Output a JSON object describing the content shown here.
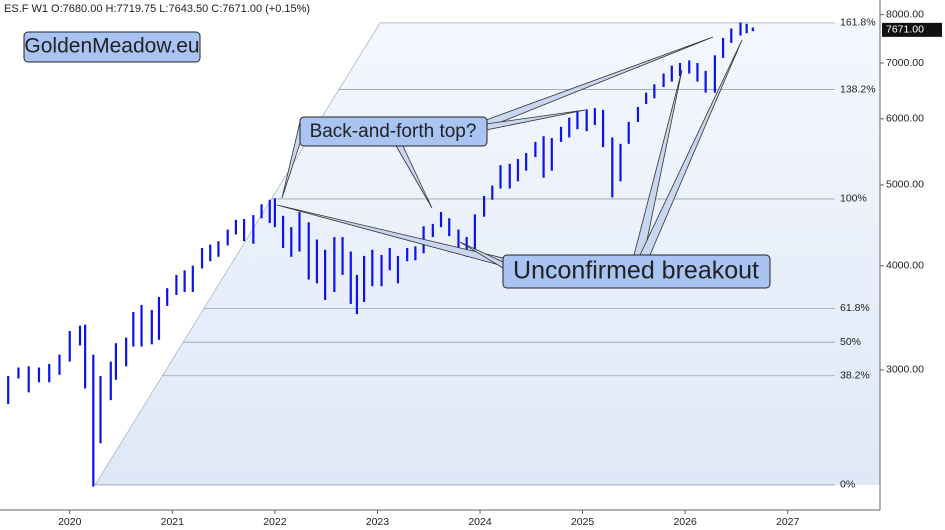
{
  "chart_data": {
    "type": "ohlc_range",
    "header": "ES.F  W1  O:7680.00  H:7719.75  L:7643.50  C:7671.00  (+0.15%)",
    "watermark": "GoldenMeadow.eu",
    "annotations": [
      "Back-and-forth top?",
      "Unconfirmed breakout"
    ],
    "color": "#0a14e6",
    "log_scale": true,
    "x": [
      2019.4,
      2019.5,
      2019.6,
      2019.7,
      2019.8,
      2019.9,
      2020.0,
      2020.1,
      2020.15,
      2020.23,
      2020.3,
      2020.4,
      2020.45,
      2020.55,
      2020.62,
      2020.7,
      2020.8,
      2020.87,
      2020.95,
      2021.04,
      2021.12,
      2021.2,
      2021.29,
      2021.37,
      2021.45,
      2021.54,
      2021.62,
      2021.7,
      2021.79,
      2021.87,
      2021.95,
      2022.0,
      2022.08,
      2022.16,
      2022.24,
      2022.33,
      2022.41,
      2022.49,
      2022.58,
      2022.66,
      2022.74,
      2022.8,
      2022.87,
      2022.95,
      2023.04,
      2023.12,
      2023.2,
      2023.29,
      2023.37,
      2023.45,
      2023.54,
      2023.62,
      2023.7,
      2023.79,
      2023.87,
      2023.95,
      2024.04,
      2024.12,
      2024.2,
      2024.29,
      2024.37,
      2024.45,
      2024.54,
      2024.62,
      2024.7,
      2024.79,
      2024.87,
      2024.95,
      2025.04,
      2025.12,
      2025.2,
      2025.29,
      2025.37,
      2025.45,
      2025.54,
      2025.62,
      2025.7,
      2025.79,
      2025.87,
      2025.95,
      2026.04,
      2026.12,
      2026.2,
      2026.29,
      2026.37,
      2026.45,
      2026.54,
      2026.6,
      2026.66
    ],
    "high": [
      2950,
      3020,
      3030,
      3020,
      3050,
      3130,
      3340,
      3390,
      3400,
      3130,
      2950,
      3070,
      3230,
      3280,
      3520,
      3590,
      3540,
      3670,
      3760,
      3900,
      3950,
      4000,
      4200,
      4240,
      4280,
      4420,
      4540,
      4550,
      4600,
      4740,
      4800,
      4818,
      4590,
      4450,
      4640,
      4510,
      4300,
      4180,
      4330,
      4330,
      4160,
      3900,
      4110,
      4180,
      4120,
      4200,
      4110,
      4200,
      4220,
      4460,
      4490,
      4640,
      4560,
      4420,
      4330,
      4610,
      4850,
      4990,
      5280,
      5300,
      5370,
      5460,
      5630,
      5720,
      5690,
      5870,
      6020,
      6130,
      6160,
      6180,
      6150,
      5700,
      5600,
      5950,
      6200,
      6450,
      6600,
      6800,
      6950,
      7000,
      7050,
      7000,
      6850,
      7150,
      7500,
      7700,
      7830,
      7800,
      7719.75
    ],
    "low": [
      2730,
      2930,
      2820,
      2900,
      2900,
      2960,
      3070,
      3210,
      2850,
      2174,
      2450,
      2760,
      2920,
      3030,
      3200,
      3200,
      3220,
      3260,
      3580,
      3690,
      3720,
      3720,
      3970,
      4050,
      4100,
      4230,
      4360,
      4280,
      4250,
      4560,
      4500,
      4450,
      4200,
      4100,
      4160,
      3850,
      3810,
      3640,
      3720,
      3900,
      3600,
      3500,
      3620,
      3780,
      3780,
      3950,
      3810,
      4050,
      4060,
      4140,
      4330,
      4450,
      4340,
      4170,
      4100,
      4150,
      4580,
      4800,
      4950,
      4950,
      5050,
      5200,
      5400,
      5100,
      5200,
      5630,
      5700,
      5830,
      5800,
      5900,
      5550,
      4830,
      5050,
      5600,
      5950,
      6250,
      6350,
      6550,
      6650,
      6750,
      6800,
      6650,
      6450,
      6450,
      7100,
      7400,
      7550,
      7600,
      7643.5
    ],
    "xlim": [
      2019.32,
      2027.9
    ],
    "xticks": [
      2020,
      2021,
      2022,
      2023,
      2024,
      2025,
      2026,
      2027
    ],
    "ylim": [
      2038,
      8330
    ],
    "yticks": [
      {
        "value": 3000,
        "label": "3000.00"
      },
      {
        "value": 4000,
        "label": "4000.00"
      },
      {
        "value": 5000,
        "label": "5000.00"
      },
      {
        "value": 6000,
        "label": "6000.00"
      },
      {
        "value": 7000,
        "label": "7000.00"
      },
      {
        "value": 8000,
        "label": "8000.00"
      }
    ],
    "last_price": {
      "value": 7671,
      "label": "7671.00"
    },
    "fib_levels": [
      {
        "value": 2184,
        "label": "0%"
      },
      {
        "value": 2952,
        "label": "38.2%"
      },
      {
        "value": 3239,
        "label": "50%"
      },
      {
        "value": 3556,
        "label": "61.8%"
      },
      {
        "value": 4810,
        "label": "100%"
      },
      {
        "value": 6505,
        "label": "138.2%"
      },
      {
        "value": 7820,
        "label": "161.8%"
      }
    ]
  }
}
